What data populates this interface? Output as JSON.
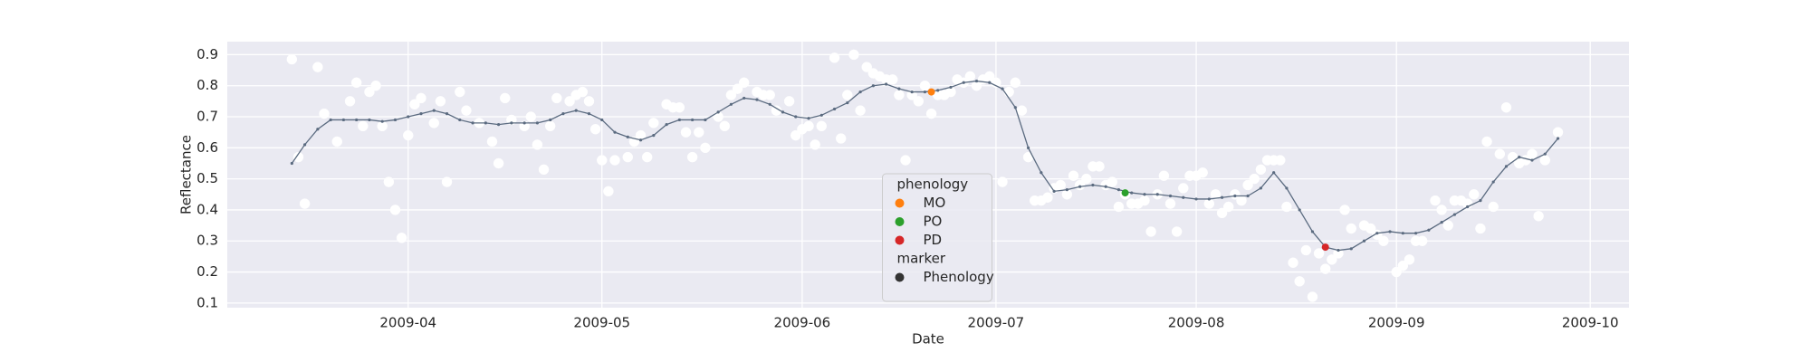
{
  "chart_data": {
    "type": "scatter",
    "x_label": "Date",
    "y_label": "Reflectance",
    "xlim": [
      63,
      280
    ],
    "ylim": [
      0.085,
      0.942
    ],
    "xticks": [
      {
        "value": 91,
        "label": "2009-04"
      },
      {
        "value": 121,
        "label": "2009-05"
      },
      {
        "value": 152,
        "label": "2009-06"
      },
      {
        "value": 182,
        "label": "2009-07"
      },
      {
        "value": 213,
        "label": "2009-08"
      },
      {
        "value": 244,
        "label": "2009-09"
      },
      {
        "value": 274,
        "label": "2009-10"
      }
    ],
    "yticks": [
      0.1,
      0.2,
      0.3,
      0.4,
      0.5,
      0.6,
      0.7,
      0.8,
      0.9
    ],
    "grid": true,
    "legend_position": "lower center",
    "legend": {
      "title": "phenology",
      "marker_title": "marker",
      "marker_label": "Phenology",
      "marker_color": "#333333"
    },
    "series": [
      {
        "mode": "points",
        "color": "#ffffff",
        "x": [
          73,
          74,
          75,
          77,
          78,
          80,
          82,
          83,
          84,
          85,
          86,
          87,
          88,
          89,
          90,
          91,
          92,
          93,
          95,
          96,
          97,
          99,
          100,
          102,
          104,
          105,
          106,
          107,
          109,
          110,
          111,
          112,
          113,
          114,
          116,
          117,
          118,
          119,
          120,
          121,
          122,
          123,
          125,
          126,
          127,
          128,
          129,
          131,
          132,
          133,
          134,
          135,
          136,
          137,
          139,
          140,
          141,
          142,
          143,
          145,
          146,
          147,
          148,
          150,
          151,
          152,
          153,
          154,
          155,
          157,
          158,
          159,
          160,
          161,
          162,
          163,
          164,
          165,
          166,
          167,
          168,
          169,
          170,
          171,
          172,
          173,
          174,
          175,
          176,
          177,
          178,
          179,
          180,
          181,
          182,
          183,
          184,
          185,
          186,
          187,
          188,
          189,
          190,
          191,
          192,
          193,
          194,
          195,
          196,
          197,
          198,
          199,
          200,
          201,
          202,
          203,
          204,
          205,
          206,
          207,
          208,
          209,
          210,
          211,
          212,
          213,
          214,
          215,
          216,
          217,
          218,
          219,
          220,
          221,
          222,
          223,
          224,
          225,
          226,
          227,
          228,
          229,
          230,
          231,
          232,
          233,
          234,
          235,
          236,
          237,
          239,
          240,
          241,
          242,
          244,
          245,
          246,
          247,
          248,
          250,
          251,
          252,
          253,
          254,
          255,
          256,
          257,
          258,
          259,
          260,
          261,
          262,
          263,
          264,
          265,
          266,
          267,
          269
        ],
        "values": [
          0.885,
          0.57,
          0.42,
          0.86,
          0.71,
          0.62,
          0.75,
          0.81,
          0.67,
          0.78,
          0.8,
          0.67,
          0.49,
          0.4,
          0.31,
          0.64,
          0.74,
          0.76,
          0.68,
          0.75,
          0.49,
          0.78,
          0.72,
          0.68,
          0.62,
          0.55,
          0.76,
          0.69,
          0.67,
          0.7,
          0.61,
          0.53,
          0.67,
          0.76,
          0.75,
          0.77,
          0.78,
          0.75,
          0.66,
          0.56,
          0.46,
          0.56,
          0.57,
          0.62,
          0.64,
          0.57,
          0.68,
          0.74,
          0.73,
          0.73,
          0.65,
          0.57,
          0.65,
          0.6,
          0.7,
          0.67,
          0.77,
          0.79,
          0.81,
          0.78,
          0.77,
          0.77,
          0.72,
          0.75,
          0.64,
          0.66,
          0.67,
          0.61,
          0.67,
          0.89,
          0.63,
          0.77,
          0.9,
          0.72,
          0.86,
          0.84,
          0.83,
          0.82,
          0.82,
          0.77,
          0.56,
          0.77,
          0.75,
          0.8,
          0.71,
          0.77,
          0.77,
          0.78,
          0.82,
          0.81,
          0.83,
          0.8,
          0.82,
          0.83,
          0.81,
          0.49,
          0.78,
          0.81,
          0.72,
          0.57,
          0.43,
          0.43,
          0.44,
          0.47,
          0.48,
          0.45,
          0.51,
          0.48,
          0.5,
          0.54,
          0.54,
          0.48,
          0.49,
          0.41,
          0.45,
          0.42,
          0.42,
          0.43,
          0.33,
          0.45,
          0.51,
          0.42,
          0.33,
          0.47,
          0.51,
          0.51,
          0.52,
          0.42,
          0.45,
          0.39,
          0.41,
          0.45,
          0.43,
          0.48,
          0.5,
          0.53,
          0.56,
          0.56,
          0.56,
          0.41,
          0.23,
          0.17,
          0.27,
          0.12,
          0.26,
          0.21,
          0.24,
          0.26,
          0.4,
          0.34,
          0.35,
          0.34,
          0.32,
          0.3,
          0.2,
          0.22,
          0.24,
          0.3,
          0.3,
          0.43,
          0.4,
          0.35,
          0.43,
          0.43,
          0.42,
          0.45,
          0.34,
          0.62,
          0.41,
          0.58,
          0.73,
          0.57,
          0.55,
          0.56,
          0.58,
          0.38,
          0.56,
          0.65
        ]
      },
      {
        "mode": "line",
        "color": "#5b6b80",
        "x": [
          73,
          75,
          77,
          79,
          81,
          83,
          85,
          87,
          89,
          91,
          93,
          95,
          97,
          99,
          101,
          103,
          105,
          107,
          109,
          111,
          113,
          115,
          117,
          119,
          121,
          123,
          125,
          127,
          129,
          131,
          133,
          135,
          137,
          139,
          141,
          143,
          145,
          147,
          149,
          151,
          153,
          155,
          157,
          159,
          161,
          163,
          165,
          167,
          169,
          171,
          173,
          175,
          177,
          179,
          181,
          183,
          185,
          187,
          189,
          191,
          193,
          195,
          197,
          199,
          201,
          203,
          205,
          207,
          209,
          211,
          213,
          215,
          217,
          219,
          221,
          223,
          225,
          227,
          229,
          231,
          233,
          235,
          237,
          239,
          241,
          243,
          245,
          247,
          249,
          251,
          253,
          255,
          257,
          259,
          261,
          263,
          265,
          267,
          269
        ],
        "values": [
          0.55,
          0.61,
          0.66,
          0.69,
          0.69,
          0.69,
          0.69,
          0.685,
          0.69,
          0.7,
          0.71,
          0.72,
          0.71,
          0.69,
          0.68,
          0.68,
          0.675,
          0.68,
          0.68,
          0.68,
          0.69,
          0.71,
          0.72,
          0.71,
          0.69,
          0.65,
          0.635,
          0.625,
          0.64,
          0.675,
          0.69,
          0.69,
          0.69,
          0.715,
          0.74,
          0.76,
          0.755,
          0.74,
          0.715,
          0.7,
          0.695,
          0.705,
          0.725,
          0.745,
          0.78,
          0.8,
          0.805,
          0.79,
          0.78,
          0.78,
          0.785,
          0.795,
          0.81,
          0.815,
          0.81,
          0.79,
          0.73,
          0.6,
          0.52,
          0.46,
          0.465,
          0.475,
          0.48,
          0.475,
          0.465,
          0.455,
          0.45,
          0.45,
          0.445,
          0.44,
          0.435,
          0.435,
          0.44,
          0.445,
          0.445,
          0.47,
          0.52,
          0.47,
          0.4,
          0.33,
          0.28,
          0.27,
          0.275,
          0.3,
          0.325,
          0.33,
          0.325,
          0.325,
          0.335,
          0.36,
          0.385,
          0.41,
          0.43,
          0.49,
          0.54,
          0.57,
          0.56,
          0.58,
          0.63
        ]
      },
      {
        "mode": "points",
        "name": "MO",
        "color": "#ff7f0e",
        "x": [
          172
        ],
        "values": [
          0.78
        ]
      },
      {
        "mode": "points",
        "name": "PO",
        "color": "#2ca02c",
        "x": [
          202
        ],
        "values": [
          0.455
        ]
      },
      {
        "mode": "points",
        "name": "PD",
        "color": "#d62728",
        "x": [
          233
        ],
        "values": [
          0.28
        ]
      }
    ]
  }
}
